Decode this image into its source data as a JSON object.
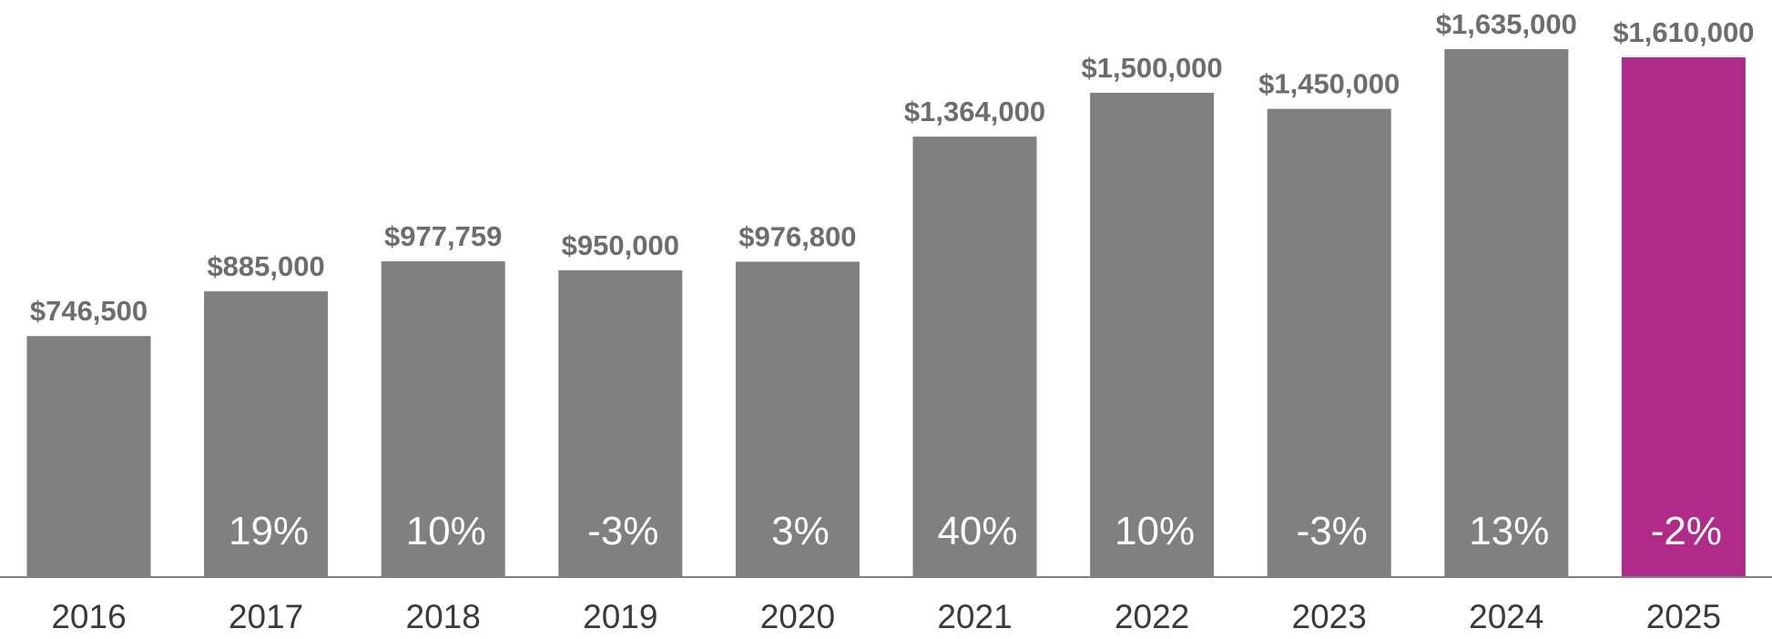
{
  "chart_data": {
    "type": "bar",
    "title": "",
    "xlabel": "",
    "ylabel": "",
    "categories": [
      "2016",
      "2017",
      "2018",
      "2019",
      "2020",
      "2021",
      "2022",
      "2023",
      "2024",
      "2025"
    ],
    "values": [
      746500,
      885000,
      977759,
      950000,
      976800,
      1364000,
      1500000,
      1450000,
      1635000,
      1610000
    ],
    "value_labels": [
      "$746,500",
      "$885,000",
      "$977,759",
      "$950,000",
      "$976,800",
      "$1,364,000",
      "$1,500,000",
      "$1,450,000",
      "$1,635,000",
      "$1,610,000"
    ],
    "change_labels": [
      "",
      "19%",
      "10%",
      "-3%",
      "3%",
      "40%",
      "10%",
      "-3%",
      "13%",
      "-2%"
    ],
    "ylim": [
      0,
      1635000
    ],
    "grid": false,
    "legend": "none",
    "colors": {
      "bar": "#808080",
      "highlight": "#b02a8a",
      "axis": "#808080",
      "value_text": "#6d6d6d",
      "tick_text": "#3a3a3a",
      "change_text": "#ffffff"
    },
    "highlight_index": 9
  }
}
